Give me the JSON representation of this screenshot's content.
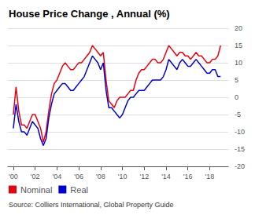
{
  "chart_data": {
    "type": "line",
    "title": "House Price Change , Annual (%)",
    "source": "Source: Colliers International, Global Property Guide",
    "x": [
      2000.0,
      2000.25,
      2000.5,
      2000.75,
      2001.0,
      2001.25,
      2001.5,
      2001.75,
      2002.0,
      2002.25,
      2002.5,
      2002.75,
      2003.0,
      2003.25,
      2003.5,
      2003.75,
      2004.0,
      2004.25,
      2004.5,
      2004.75,
      2005.0,
      2005.25,
      2005.5,
      2005.75,
      2006.0,
      2006.25,
      2006.5,
      2006.75,
      2007.0,
      2007.25,
      2007.5,
      2007.75,
      2008.0,
      2008.25,
      2008.5,
      2008.75,
      2009.0,
      2009.25,
      2009.5,
      2009.75,
      2010.0,
      2010.25,
      2010.5,
      2010.75,
      2011.0,
      2011.25,
      2011.5,
      2011.75,
      2012.0,
      2012.25,
      2012.5,
      2012.75,
      2013.0,
      2013.25,
      2013.5,
      2013.75,
      2014.0,
      2014.25,
      2014.5,
      2014.75,
      2015.0,
      2015.25,
      2015.5,
      2015.75,
      2016.0,
      2016.25,
      2016.5,
      2016.75,
      2017.0,
      2017.25,
      2017.5,
      2017.75,
      2018.0,
      2018.25,
      2018.5,
      2018.75,
      2019.0
    ],
    "series": [
      {
        "name": "Nominal",
        "color": "#e8000d",
        "values": [
          -5,
          3,
          -4,
          -8,
          -8,
          -9,
          -7,
          -5,
          -5,
          -7,
          -9,
          -13,
          -10,
          -4,
          1,
          4,
          5,
          7,
          9,
          10,
          9,
          8,
          8,
          9,
          10,
          10,
          11,
          12,
          13,
          15,
          14,
          13,
          12,
          13,
          5,
          -1,
          -2,
          -3,
          -1,
          0,
          0,
          0,
          1,
          2,
          2,
          5,
          7,
          8,
          8,
          9,
          10,
          11,
          11,
          10,
          10,
          11,
          13,
          15,
          14,
          13,
          12,
          13,
          13,
          12,
          12,
          11,
          12,
          13,
          12,
          12,
          11,
          10,
          10,
          11,
          11,
          12,
          15
        ]
      },
      {
        "name": "Real",
        "color": "#0000cc",
        "values": [
          -9,
          -2,
          -7,
          -10,
          -10,
          -11,
          -9,
          -7,
          -8,
          -9,
          -12,
          -14,
          -12,
          -6,
          -2,
          1,
          2,
          3,
          4,
          4,
          3,
          2,
          2,
          3,
          4,
          5,
          6,
          8,
          10,
          12,
          11,
          10,
          8,
          10,
          2,
          -3,
          -3,
          -4,
          -5,
          -6,
          -5,
          -3,
          -1,
          0,
          0,
          1,
          2,
          2,
          2,
          3,
          4,
          5,
          5,
          5,
          5,
          6,
          8,
          11,
          10,
          9,
          8,
          10,
          11,
          10,
          9,
          9,
          10,
          11,
          10,
          9,
          8,
          7,
          7,
          8,
          8,
          6,
          6
        ]
      }
    ],
    "xlim": [
      1999.5,
      2019.7
    ],
    "xticks": [
      {
        "value": 2000,
        "label": "'00"
      },
      {
        "value": 2002,
        "label": "'02"
      },
      {
        "value": 2004,
        "label": "'04"
      },
      {
        "value": 2006,
        "label": "'06"
      },
      {
        "value": 2008,
        "label": "'08"
      },
      {
        "value": 2010,
        "label": "'10"
      },
      {
        "value": 2012,
        "label": "'12"
      },
      {
        "value": 2014,
        "label": "'14"
      },
      {
        "value": 2016,
        "label": "'16"
      },
      {
        "value": 2018,
        "label": "'18"
      }
    ],
    "ylim": [
      -20,
      20
    ],
    "yticks": [
      -20,
      -15,
      -10,
      -5,
      0,
      5,
      10,
      15,
      20
    ],
    "grid": true,
    "legend": "bottom"
  }
}
